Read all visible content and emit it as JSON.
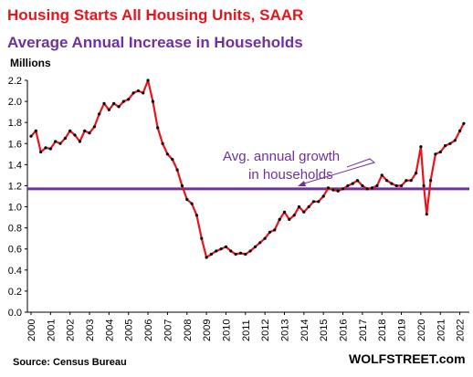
{
  "title": "Housing Starts All Housing Units, SAAR",
  "subtitle": "Average Annual Increase in Households",
  "unit_label": "Millions",
  "source": "Source: Census Bureau",
  "brand": "WOLFSTREET.com",
  "annotation": {
    "line1": "Avg. annual growth",
    "line2": "in households"
  },
  "colors": {
    "series_line": "#e8141c",
    "series_markers": "#000000",
    "average_line": "#7030a0",
    "title_red": "#e8141c",
    "title_purple": "#7030a0"
  },
  "chart_data": {
    "type": "line",
    "title": "Housing Starts All Housing Units, SAAR",
    "subtitle": "Average Annual Increase in Households",
    "ylabel": "Millions",
    "xlabel": "",
    "ylim": [
      0,
      2.2
    ],
    "yticks": [
      0.0,
      0.2,
      0.4,
      0.6,
      0.8,
      1.0,
      1.2,
      1.4,
      1.6,
      1.8,
      2.0,
      2.2
    ],
    "ytick_labels": [
      "0.0",
      "0.2",
      "0.4",
      "0.6",
      "0.8",
      "1.0",
      "1.2",
      "1.4",
      "1.6",
      "1.8",
      "2.0",
      "2.2"
    ],
    "xlim": [
      2000,
      2022.3
    ],
    "xticks": [
      "2000",
      "2001",
      "2002",
      "2003",
      "2004",
      "2005",
      "2006",
      "2007",
      "2008",
      "2009",
      "2010",
      "2011",
      "2012",
      "2013",
      "2014",
      "2015",
      "2016",
      "2017",
      "2018",
      "2019",
      "2020",
      "2021",
      "2022"
    ],
    "grid": false,
    "legend": "none",
    "reference_line": {
      "y": 1.17
    },
    "series": [
      {
        "x": [
          2000.0,
          2000.25,
          2000.5,
          2000.75,
          2001.0,
          2001.25,
          2001.5,
          2001.75,
          2002.0,
          2002.25,
          2002.5,
          2002.75,
          2003.0,
          2003.25,
          2003.5,
          2003.75,
          2004.0,
          2004.25,
          2004.5,
          2004.75,
          2005.0,
          2005.25,
          2005.5,
          2005.75,
          2006.0,
          2006.25,
          2006.5,
          2006.75,
          2007.0,
          2007.25,
          2007.5,
          2007.75,
          2008.0,
          2008.25,
          2008.5,
          2008.75,
          2009.0,
          2009.25,
          2009.5,
          2009.75,
          2010.0,
          2010.25,
          2010.5,
          2010.75,
          2011.0,
          2011.25,
          2011.5,
          2011.75,
          2012.0,
          2012.25,
          2012.5,
          2012.75,
          2013.0,
          2013.25,
          2013.5,
          2013.75,
          2014.0,
          2014.25,
          2014.5,
          2014.75,
          2015.0,
          2015.25,
          2015.5,
          2015.75,
          2016.0,
          2016.25,
          2016.5,
          2016.75,
          2017.0,
          2017.25,
          2017.5,
          2017.75,
          2018.0,
          2018.25,
          2018.5,
          2018.75,
          2019.0,
          2019.25,
          2019.5,
          2019.75,
          2020.0,
          2020.15,
          2020.3,
          2020.5,
          2020.75,
          2021.0,
          2021.25,
          2021.5,
          2021.75,
          2022.0,
          2022.2
        ],
        "y": [
          1.67,
          1.72,
          1.52,
          1.56,
          1.55,
          1.62,
          1.6,
          1.65,
          1.72,
          1.68,
          1.62,
          1.72,
          1.7,
          1.76,
          1.88,
          1.98,
          1.92,
          1.98,
          1.95,
          2.0,
          2.02,
          2.08,
          2.1,
          2.08,
          2.2,
          2.0,
          1.75,
          1.6,
          1.5,
          1.45,
          1.35,
          1.2,
          1.07,
          1.03,
          0.92,
          0.7,
          0.52,
          0.55,
          0.58,
          0.6,
          0.62,
          0.58,
          0.55,
          0.56,
          0.55,
          0.58,
          0.62,
          0.66,
          0.7,
          0.76,
          0.78,
          0.88,
          0.95,
          0.88,
          0.92,
          1.0,
          0.95,
          1.0,
          1.05,
          1.05,
          1.1,
          1.18,
          1.16,
          1.15,
          1.17,
          1.2,
          1.22,
          1.25,
          1.2,
          1.17,
          1.18,
          1.2,
          1.3,
          1.25,
          1.22,
          1.2,
          1.2,
          1.25,
          1.25,
          1.32,
          1.57,
          1.2,
          0.93,
          1.25,
          1.5,
          1.52,
          1.58,
          1.6,
          1.63,
          1.72,
          1.79
        ]
      }
    ]
  }
}
